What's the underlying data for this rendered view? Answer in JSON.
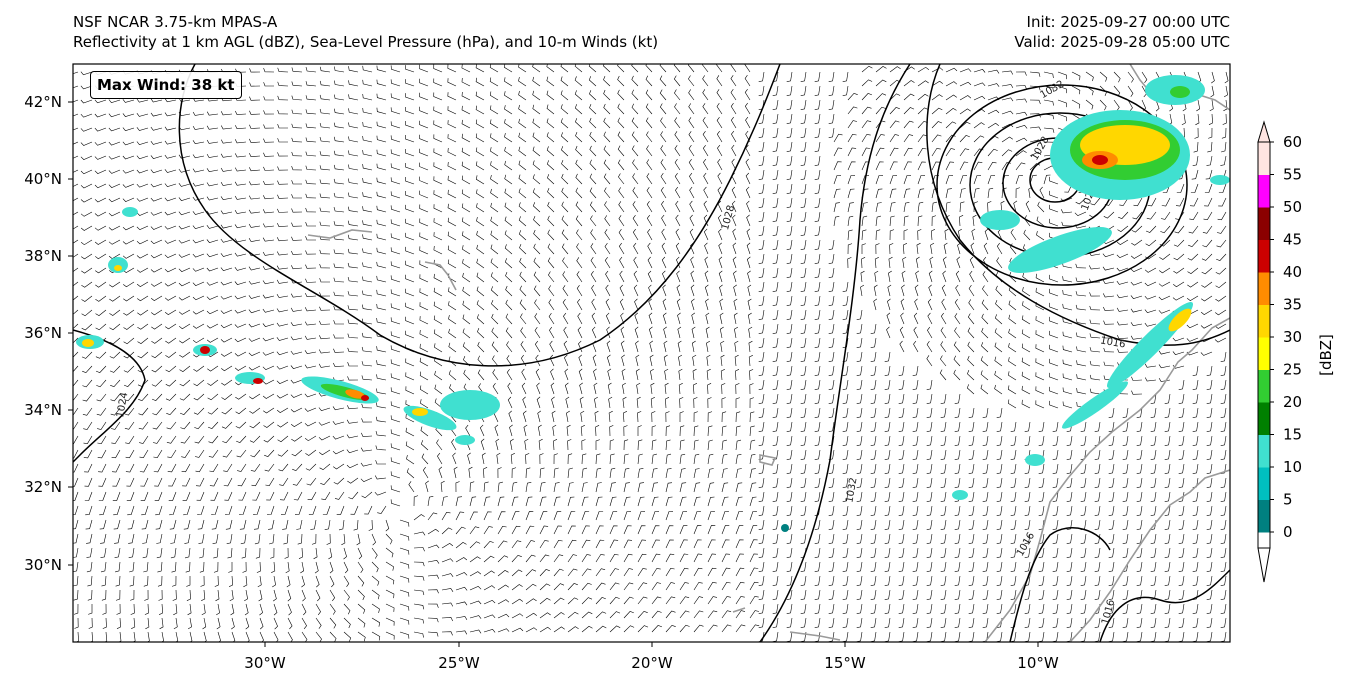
{
  "header": {
    "model_line": "NSF NCAR 3.75-km MPAS-A",
    "field_line": "Reflectivity at 1 km AGL (dBZ), Sea-Level Pressure (hPa), and 10-m Winds (kt)",
    "init_line": "Init: 2025-09-27 00:00 UTC",
    "valid_line": "Valid: 2025-09-28 05:00 UTC"
  },
  "max_wind_label": "Max Wind: 38 kt",
  "map": {
    "lon_ticks": [
      "30°W",
      "25°W",
      "20°W",
      "15°W",
      "10°W"
    ],
    "lat_ticks": [
      "42°N",
      "40°N",
      "38°N",
      "36°N",
      "34°N",
      "32°N",
      "30°N"
    ],
    "isobar_labels": [
      "1028",
      "1032",
      "1028",
      "1032",
      "1024",
      "1020",
      "1016",
      "1016",
      "1016",
      "1024"
    ]
  },
  "colorbar": {
    "unit_label": "[dBZ]",
    "tick_labels": [
      "0",
      "5",
      "10",
      "15",
      "20",
      "25",
      "30",
      "35",
      "40",
      "45",
      "50",
      "55",
      "60"
    ],
    "colors": [
      "#008080",
      "#00bfbf",
      "#40e0d0",
      "#008000",
      "#32cd32",
      "#ffff00",
      "#ffd700",
      "#ff8c00",
      "#cc0000",
      "#8b0000",
      "#ff00ff",
      "#ffe4e1"
    ]
  }
}
